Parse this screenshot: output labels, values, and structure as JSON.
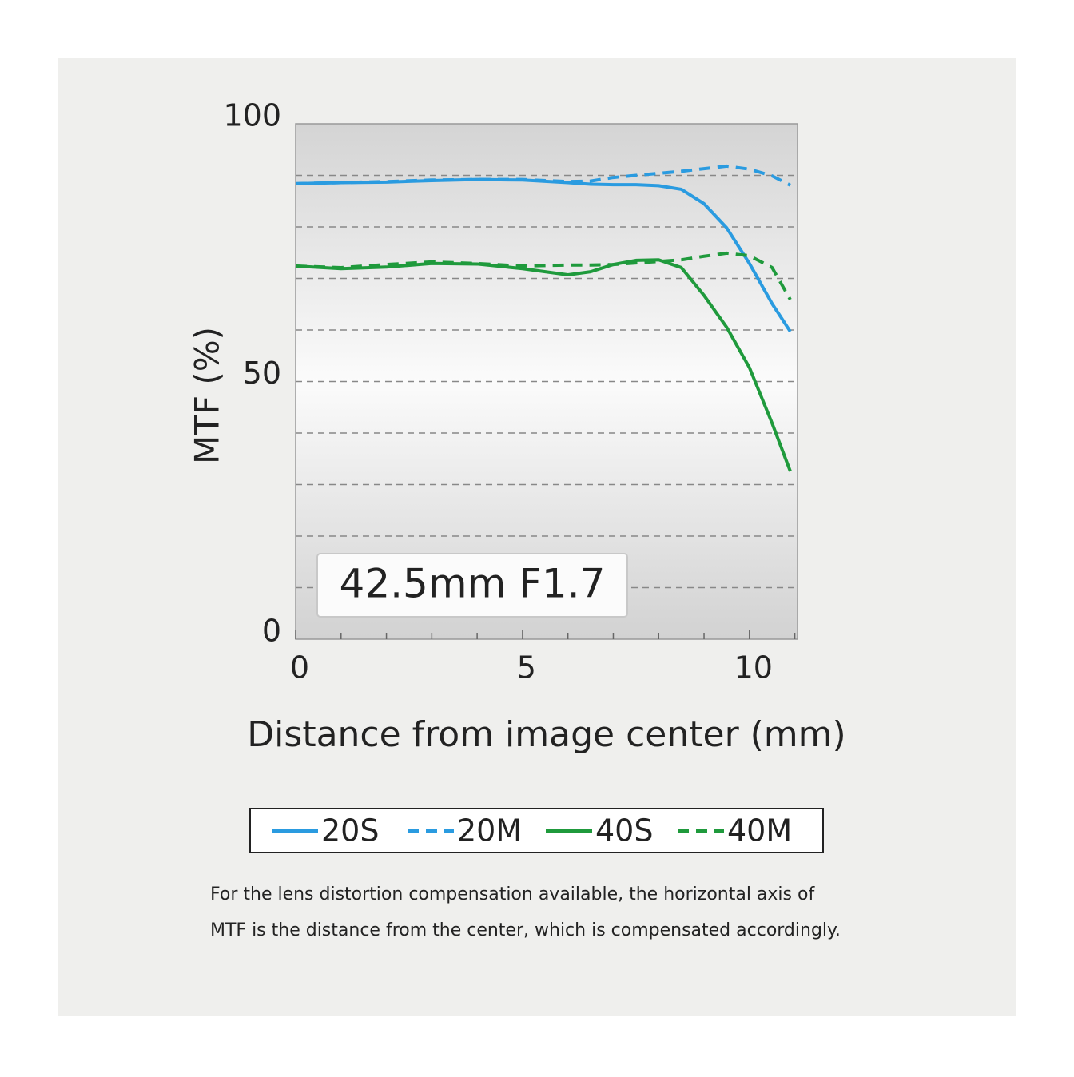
{
  "chart_data": {
    "type": "line",
    "annotation": "42.5mm F1.7",
    "xlabel": "Distance from image center (mm)",
    "ylabel": "MTF (%)",
    "x": [
      0,
      1,
      2,
      3,
      4,
      5,
      6,
      6.5,
      7,
      7.5,
      8,
      8.5,
      9,
      9.5,
      10,
      10.5,
      10.9
    ],
    "series": [
      {
        "name": "20S",
        "color": "#2a9be0",
        "dashed": false,
        "values": [
          88.4,
          88.6,
          88.7,
          89,
          89.2,
          89.1,
          88.6,
          88.3,
          88.2,
          88.2,
          88,
          87.3,
          84.5,
          79.8,
          72.9,
          65.1,
          59.7
        ]
      },
      {
        "name": "20M",
        "color": "#2a9be0",
        "dashed": true,
        "values": [
          88.4,
          88.6,
          88.8,
          89.1,
          89.2,
          89.2,
          88.8,
          88.9,
          89.6,
          90,
          90.4,
          90.8,
          91.3,
          91.8,
          91.2,
          89.9,
          88.1
        ]
      },
      {
        "name": "40S",
        "color": "#1f9a3c",
        "dashed": false,
        "values": [
          72.4,
          71.9,
          72.2,
          72.9,
          72.8,
          71.9,
          70.7,
          71.3,
          72.7,
          73.5,
          73.6,
          72.1,
          66.7,
          60.5,
          52.7,
          41.9,
          32.6
        ]
      },
      {
        "name": "40M",
        "color": "#1f9a3c",
        "dashed": true,
        "values": [
          72.4,
          72.1,
          72.7,
          73.2,
          72.9,
          72.4,
          72.6,
          72.6,
          72.7,
          73,
          73.3,
          73.6,
          74.3,
          74.9,
          74.4,
          72.1,
          65.9
        ]
      }
    ],
    "xlim": [
      0,
      11.06
    ],
    "xticks": [
      0,
      5,
      10
    ],
    "xminorticks": [
      1,
      2,
      3,
      4,
      6,
      7,
      8,
      9,
      11
    ],
    "ylim": [
      0,
      100
    ],
    "yticks": [
      0,
      50,
      100
    ],
    "ygrid": [
      10,
      20,
      30,
      40,
      50,
      60,
      70,
      80,
      90
    ],
    "note": [
      "For the lens distortion compensation available, the horizontal axis of",
      "MTF is the distance from the center, which is compensated accordingly."
    ]
  }
}
